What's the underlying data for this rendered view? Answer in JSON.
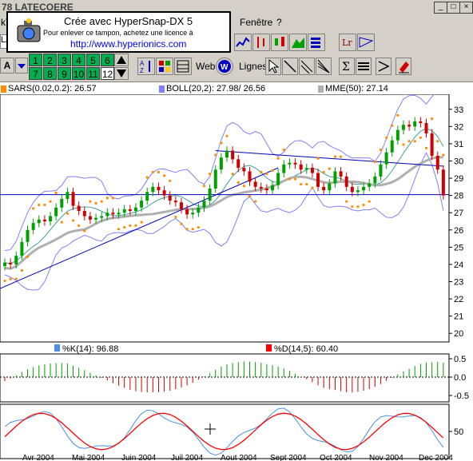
{
  "window": {
    "title": "78  LATECOERE",
    "min": "_",
    "max": "□",
    "close": "×"
  },
  "menu": {
    "left": "kTe",
    "fenetre": "Fenêtre",
    "help": "?"
  },
  "toolbar1": {
    "code": "LA"
  },
  "toolbar2": {
    "font_btn": "A",
    "periods_row1": [
      "1",
      "2",
      "3",
      "4",
      "5",
      "6"
    ],
    "periods_row2": [
      "7",
      "8",
      "9",
      "10",
      "11",
      "12"
    ],
    "web_label": "Web",
    "lignes_label": "Lignes"
  },
  "hypersnap": {
    "line1": "Crée avec HyperSnap-DX 5",
    "line2": "Pour enlever ce tampon, achetez une licence à",
    "line3": "http://www.hyperionics.com"
  },
  "legend": {
    "sars": "SARS(0.02,0.2): 26.57",
    "boll": "BOLL(20,2): 27.98/ 26.56",
    "mme": "MME(50): 27.14",
    "k": "%K(14): 96.88",
    "d": "%D(14,5): 60.40"
  },
  "colors": {
    "sars": "#ff8c00",
    "boll": "#8080ff",
    "mme": "#b0b0b0",
    "k": "#4a90e2",
    "d": "#ff0000",
    "candle_up": "#00a000",
    "candle_down": "#d00000",
    "trend": "#0000c0"
  },
  "chart_data": {
    "type": "candlestick",
    "ylim": [
      19.5,
      33.5
    ],
    "y_ticks": [
      "33",
      "32",
      "31",
      "30",
      "29",
      "28",
      "27",
      "26",
      "25",
      "24",
      "23",
      "22",
      "21",
      "20"
    ],
    "x_labels": [
      "Avr 2004",
      "Mai 2004",
      "Juin 2004",
      "Juil 2004",
      "Aout 2004",
      "Sept 2004",
      "Oct 2004",
      "Nov 2004",
      "Dec 2004"
    ],
    "close": [
      24.1,
      24.0,
      24.5,
      25.3,
      26.0,
      26.4,
      26.6,
      26.5,
      26.8,
      27.3,
      27.8,
      28.2,
      27.4,
      27.1,
      26.8,
      26.6,
      26.7,
      26.8,
      27.0,
      26.9,
      27.0,
      27.2,
      27.1,
      27.3,
      27.7,
      28.2,
      28.5,
      28.3,
      28.0,
      27.7,
      27.6,
      27.2,
      26.9,
      27.0,
      27.3,
      27.7,
      28.4,
      29.5,
      30.2,
      30.6,
      30.1,
      29.6,
      29.4,
      28.8,
      28.5,
      28.4,
      28.3,
      28.6,
      29.3,
      29.8,
      29.9,
      29.8,
      29.5,
      29.6,
      29.3,
      28.5,
      28.3,
      28.7,
      29.4,
      29.1,
      28.5,
      28.2,
      28.3,
      28.5,
      28.7,
      29.1,
      29.8,
      30.5,
      31.2,
      31.8,
      32.1,
      32.0,
      32.3,
      32.2,
      31.6,
      30.3,
      29.5,
      28.0
    ],
    "sars_level": 26.57,
    "boll": [
      27.98,
      26.56
    ],
    "mme50": 27.14,
    "hline": 28.05,
    "macd_ticks": [
      "0.5",
      "0.0",
      "-0.5"
    ],
    "stoch_ticks": [
      "50"
    ],
    "k_last": 96.88,
    "d_last": 60.4
  }
}
